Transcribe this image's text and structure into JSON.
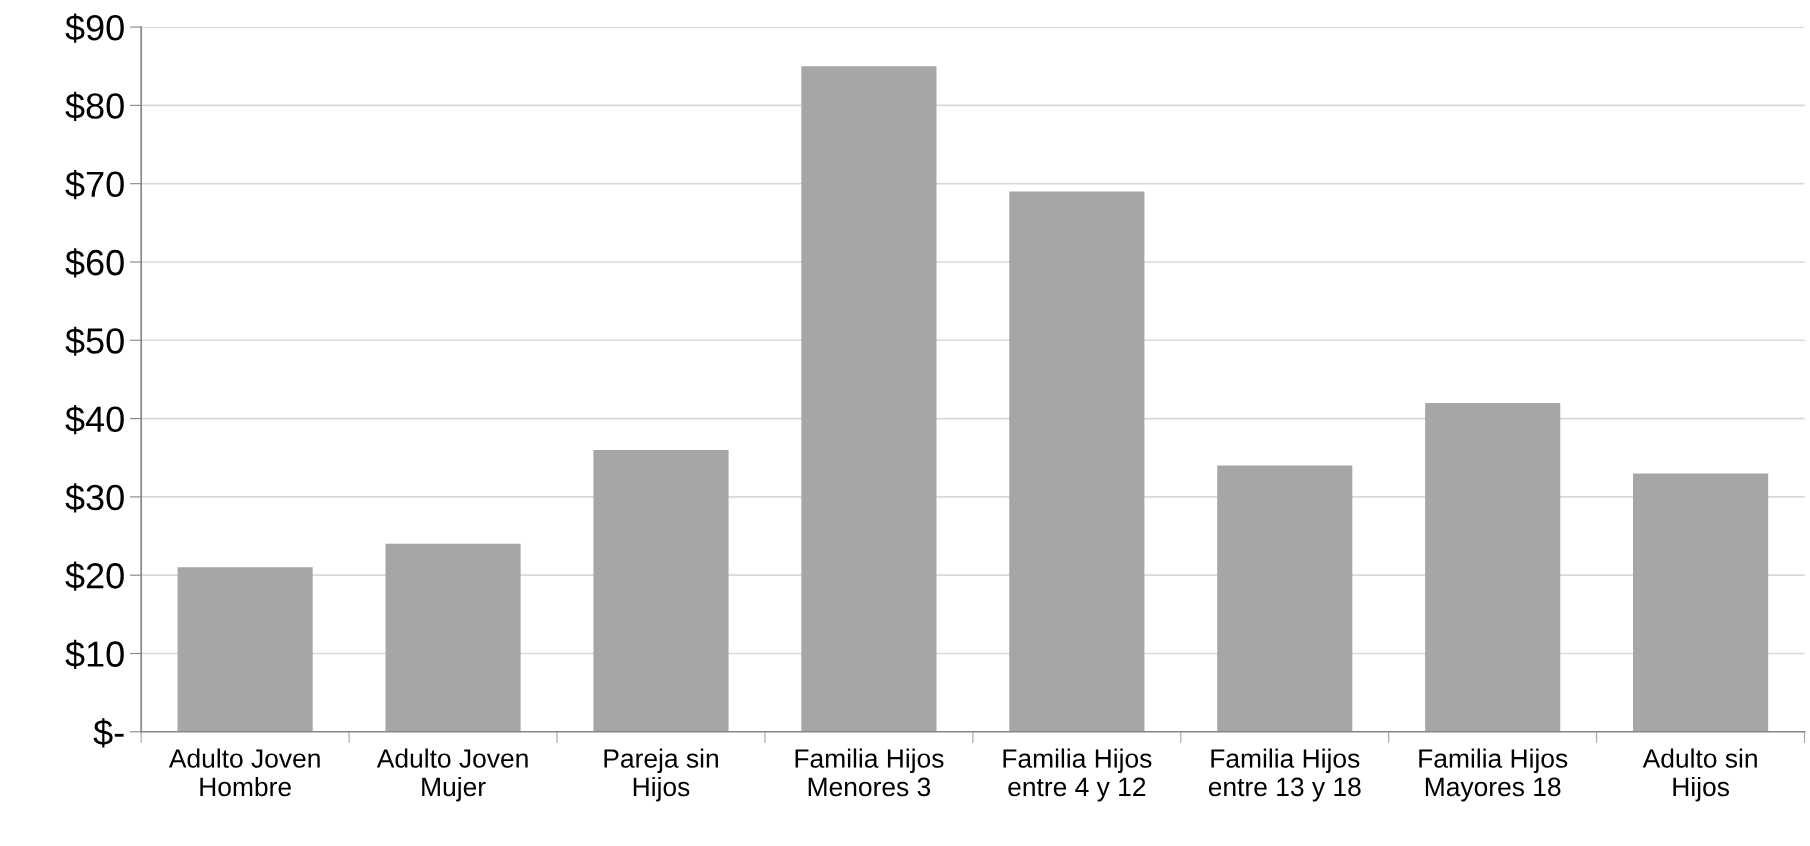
{
  "chart_data": {
    "type": "bar",
    "categories": [
      "Adulto Joven\nHombre",
      "Adulto Joven\nMujer",
      "Pareja sin\nHijos",
      "Familia Hijos\nMenores 3",
      "Familia Hijos\nentre 4 y 12",
      "Familia Hijos\nentre 13 y 18",
      "Familia Hijos\nMayores 18",
      "Adulto sin\nHijos"
    ],
    "values": [
      21,
      24,
      36,
      85,
      69,
      34,
      42,
      33
    ],
    "color": "#a6a6a6",
    "ylim": [
      0,
      90
    ],
    "yticks": [
      {
        "value": 0,
        "label": "$-"
      },
      {
        "value": 10,
        "label": "$10"
      },
      {
        "value": 20,
        "label": "$20"
      },
      {
        "value": 30,
        "label": "$30"
      },
      {
        "value": 40,
        "label": "$40"
      },
      {
        "value": 50,
        "label": "$50"
      },
      {
        "value": 60,
        "label": "$60"
      },
      {
        "value": 70,
        "label": "$70"
      },
      {
        "value": 80,
        "label": "$80"
      },
      {
        "value": 90,
        "label": "$90"
      }
    ],
    "grid": "y"
  }
}
